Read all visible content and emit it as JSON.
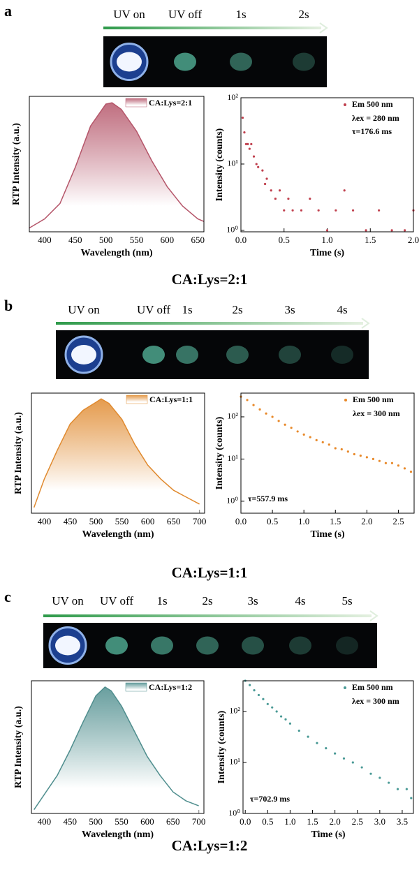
{
  "panels": [
    {
      "label": "a",
      "steps": [
        "UV on",
        "UV off",
        "1s",
        "2s"
      ],
      "caption": "CA:Lys=2:1"
    },
    {
      "label": "b",
      "steps": [
        "UV on",
        "UV off",
        "1s",
        "2s",
        "3s",
        "4s"
      ],
      "caption": "CA:Lys=1:1"
    },
    {
      "label": "c",
      "steps": [
        "UV on",
        "UV off",
        "1s",
        "2s",
        "3s",
        "4s",
        "5s"
      ],
      "caption": "CA:Lys=1:2"
    }
  ],
  "chart_data": [
    {
      "type": "line",
      "area": true,
      "xlabel": "Wavelength (nm)",
      "ylabel": "RTP Intensity (a.u.)",
      "x": [
        375,
        400,
        425,
        450,
        475,
        500,
        510,
        525,
        550,
        575,
        600,
        625,
        650,
        660
      ],
      "series": [
        {
          "name": "CA:Lys=2:1",
          "color": "#b5566a",
          "values": [
            0.03,
            0.1,
            0.22,
            0.5,
            0.82,
            0.99,
            1.0,
            0.95,
            0.78,
            0.55,
            0.35,
            0.2,
            0.1,
            0.08
          ]
        }
      ],
      "xlim": [
        375,
        660
      ],
      "xticks": [
        400,
        450,
        500,
        550,
        600,
        650
      ],
      "ylim": [
        0,
        1.05
      ]
    },
    {
      "type": "scatter",
      "log_y": true,
      "xlabel": "Time (s)",
      "ylabel": "Intensity (counts)",
      "x": [
        0.02,
        0.04,
        0.06,
        0.08,
        0.1,
        0.12,
        0.15,
        0.18,
        0.2,
        0.25,
        0.28,
        0.3,
        0.35,
        0.4,
        0.45,
        0.5,
        0.55,
        0.6,
        0.7,
        0.8,
        0.9,
        1.0,
        1.1,
        1.2,
        1.3,
        1.45,
        1.6,
        1.75,
        1.9,
        2.0
      ],
      "series": [
        {
          "name": "Em 500 nm",
          "color": "#c0404e",
          "values": [
            50,
            30,
            20,
            20,
            17,
            20,
            13,
            10,
            9,
            8,
            5,
            6,
            4,
            3,
            4,
            2,
            3,
            2,
            2,
            3,
            2,
            1,
            2,
            4,
            2,
            1,
            2,
            1,
            1,
            2
          ]
        }
      ],
      "annotations": [
        "λex = 280 nm",
        "τ=176.6 ms"
      ],
      "xlim": [
        0,
        2
      ],
      "xticks": [
        {
          "value": 0,
          "label": "0.0"
        },
        0.5,
        {
          "value": 1,
          "label": "1.0"
        },
        1.5,
        {
          "value": 2,
          "label": "2.0"
        }
      ],
      "ylim": [
        0.95,
        100
      ],
      "yticks": [
        {
          "value": 1,
          "label": "10⁰"
        },
        {
          "value": 10,
          "label": "10¹"
        },
        {
          "value": 100,
          "label": "10²"
        }
      ]
    },
    {
      "type": "line",
      "area": true,
      "xlabel": "Wavelength (nm)",
      "ylabel": "RTP Intensity (a.u.)",
      "x": [
        380,
        400,
        425,
        450,
        475,
        500,
        510,
        525,
        550,
        575,
        600,
        625,
        650,
        675,
        700
      ],
      "series": [
        {
          "name": "CA:Lys=1:1",
          "color": "#e08a2f",
          "values": [
            0.05,
            0.3,
            0.55,
            0.78,
            0.9,
            0.97,
            1.0,
            0.96,
            0.82,
            0.6,
            0.42,
            0.3,
            0.2,
            0.14,
            0.08
          ]
        }
      ],
      "xlim": [
        375,
        710
      ],
      "xticks": [
        400,
        450,
        500,
        550,
        600,
        650,
        700
      ],
      "ylim": [
        0,
        1.05
      ]
    },
    {
      "type": "scatter",
      "log_y": true,
      "xlabel": "Time (s)",
      "ylabel": "Intensity (counts)",
      "x": [
        0.0,
        0.1,
        0.2,
        0.3,
        0.4,
        0.5,
        0.6,
        0.7,
        0.8,
        0.9,
        1.0,
        1.1,
        1.2,
        1.3,
        1.4,
        1.5,
        1.6,
        1.7,
        1.8,
        1.9,
        2.0,
        2.1,
        2.2,
        2.3,
        2.4,
        2.5,
        2.6,
        2.7
      ],
      "series": [
        {
          "name": "Em 500 nm",
          "color": "#e8892a",
          "values": [
            300,
            250,
            190,
            150,
            120,
            100,
            80,
            65,
            55,
            45,
            38,
            33,
            28,
            25,
            22,
            18,
            17,
            15,
            13,
            12,
            11,
            10,
            9,
            8,
            8,
            7,
            6,
            5
          ]
        }
      ],
      "annotations": [
        "λex = 300 nm",
        "τ=557.9 ms"
      ],
      "xlim": [
        0,
        2.75
      ],
      "xticks": [
        {
          "value": 0,
          "label": "0.0"
        },
        0.5,
        {
          "value": 1,
          "label": "1.0"
        },
        1.5,
        {
          "value": 2,
          "label": "2.0"
        },
        2.5
      ],
      "ylim": [
        0.52,
        365
      ],
      "yticks": [
        {
          "value": 1,
          "label": "10⁰"
        },
        {
          "value": 10,
          "label": "10¹"
        },
        {
          "value": 100,
          "label": "10²"
        }
      ]
    },
    {
      "type": "line",
      "area": true,
      "xlabel": "Wavelength (nm)",
      "ylabel": "RTP Intensity (a.u.)",
      "x": [
        380,
        400,
        425,
        450,
        475,
        500,
        518,
        530,
        550,
        575,
        600,
        625,
        650,
        675,
        700
      ],
      "series": [
        {
          "name": "CA:Lys=1:2",
          "color": "#4f8e8e",
          "values": [
            0.03,
            0.15,
            0.3,
            0.5,
            0.72,
            0.93,
            1.0,
            0.97,
            0.85,
            0.65,
            0.45,
            0.3,
            0.17,
            0.1,
            0.06
          ]
        }
      ],
      "xlim": [
        375,
        710
      ],
      "xticks": [
        400,
        450,
        500,
        550,
        600,
        650,
        700
      ],
      "ylim": [
        0,
        1.05
      ]
    },
    {
      "type": "scatter",
      "log_y": true,
      "xlabel": "Time (s)",
      "ylabel": "Intensity (counts)",
      "x": [
        0.0,
        0.1,
        0.2,
        0.3,
        0.4,
        0.5,
        0.6,
        0.7,
        0.8,
        0.9,
        1.0,
        1.2,
        1.4,
        1.6,
        1.8,
        2.0,
        2.2,
        2.4,
        2.6,
        2.8,
        3.0,
        3.2,
        3.4,
        3.6,
        3.7
      ],
      "series": [
        {
          "name": "Em 500 nm",
          "color": "#4a9a96",
          "values": [
            400,
            330,
            260,
            210,
            175,
            140,
            120,
            100,
            80,
            70,
            58,
            42,
            32,
            24,
            19,
            15,
            12,
            10,
            8,
            6,
            5,
            4,
            3,
            3,
            2
          ]
        }
      ],
      "annotations": [
        "λex = 300 nm",
        "τ=702.9 ms"
      ],
      "xlim": [
        -0.05,
        3.75
      ],
      "xticks": [
        {
          "value": 0,
          "label": "0.0"
        },
        0.5,
        {
          "value": 1,
          "label": "1.0"
        },
        1.5,
        {
          "value": 2,
          "label": "2.0"
        },
        2.5,
        {
          "value": 3,
          "label": "3.0"
        },
        3.5
      ],
      "ylim": [
        1,
        400
      ],
      "yticks": [
        {
          "value": 1,
          "label": "10⁰"
        },
        {
          "value": 10,
          "label": "10¹"
        },
        {
          "value": 100,
          "label": "10²"
        }
      ]
    }
  ]
}
